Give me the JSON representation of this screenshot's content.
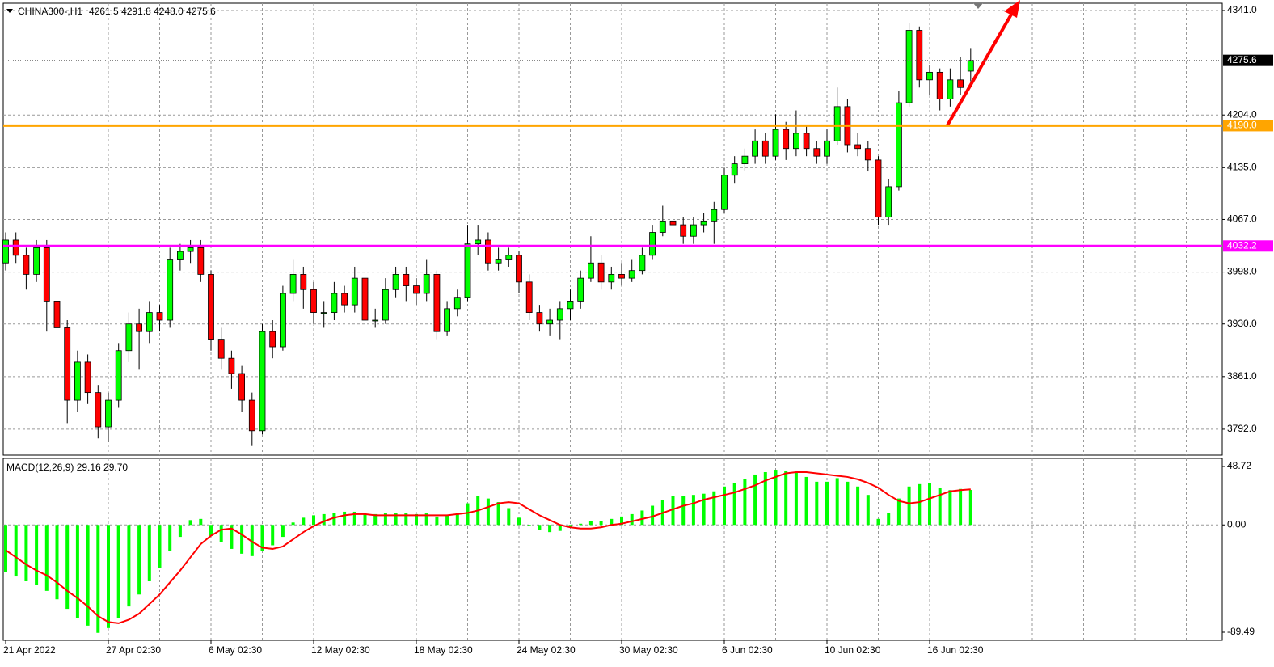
{
  "chart_data": {
    "type": "candlestick",
    "title": "CHINA300-,H1",
    "ohlc_label": "4261.5 4291.8 4248.0 4275.6",
    "categories": [
      "21 Apr 2022",
      null,
      null,
      null,
      null,
      null,
      null,
      null,
      null,
      null,
      "27 Apr 02:30",
      null,
      null,
      null,
      null,
      null,
      null,
      null,
      null,
      null,
      "6 May 02:30",
      null,
      null,
      null,
      null,
      null,
      null,
      null,
      null,
      null,
      "12 May 02:30",
      null,
      null,
      null,
      null,
      null,
      null,
      null,
      null,
      null,
      "18 May 02:30",
      null,
      null,
      null,
      null,
      null,
      null,
      null,
      null,
      null,
      "24 May 02:30",
      null,
      null,
      null,
      null,
      null,
      null,
      null,
      null,
      null,
      "30 May 02:30",
      null,
      null,
      null,
      null,
      null,
      null,
      null,
      null,
      null,
      "6 Jun 02:30",
      null,
      null,
      null,
      null,
      null,
      null,
      null,
      null,
      null,
      "10 Jun 02:30",
      null,
      null,
      null,
      null,
      null,
      null,
      null,
      null,
      null,
      "16 Jun 02:30",
      null,
      null,
      null,
      null
    ],
    "open": [
      4010,
      4040,
      4020,
      3995,
      4030,
      3960,
      3925,
      3830,
      3880,
      3840,
      3795,
      3830,
      3895,
      3930,
      3920,
      3945,
      3935,
      4015,
      4025,
      4030,
      3995,
      3910,
      3885,
      3865,
      3830,
      3790,
      3920,
      3900,
      3970,
      3995,
      3975,
      3945,
      3945,
      3970,
      3955,
      3990,
      3935,
      3935,
      3975,
      3995,
      3980,
      3970,
      3995,
      3920,
      3950,
      3965,
      4035,
      4040,
      4010,
      4015,
      4020,
      3985,
      3945,
      3930,
      3935,
      3950,
      3960,
      3990,
      4010,
      3985,
      3995,
      3990,
      4000,
      4020,
      4050,
      4065,
      4060,
      4045,
      4060,
      4065,
      4080,
      4125,
      4140,
      4150,
      4170,
      4150,
      4185,
      4160,
      4180,
      4160,
      4150,
      4170,
      4215,
      4165,
      4160,
      4145,
      4070,
      4110,
      4220,
      4315,
      4250,
      4260,
      4225,
      4250,
      4261.5
    ],
    "high": [
      4050,
      4050,
      4030,
      4040,
      4040,
      3970,
      3935,
      3895,
      3890,
      3850,
      3840,
      3905,
      3945,
      3950,
      3960,
      3955,
      4030,
      4035,
      4040,
      4040,
      4000,
      3925,
      3895,
      3875,
      3840,
      3930,
      3935,
      3980,
      4015,
      4005,
      3985,
      3960,
      3985,
      3980,
      4005,
      4000,
      3950,
      3990,
      4005,
      4005,
      3990,
      4015,
      4000,
      3960,
      3975,
      4060,
      4060,
      4050,
      4030,
      4030,
      4025,
      3995,
      3955,
      3950,
      3960,
      3975,
      4000,
      4045,
      4020,
      4005,
      4010,
      4015,
      4030,
      4060,
      4085,
      4075,
      4070,
      4070,
      4075,
      4090,
      4135,
      4150,
      4160,
      4185,
      4180,
      4205,
      4195,
      4210,
      4190,
      4170,
      4185,
      4240,
      4225,
      4180,
      4170,
      4150,
      4120,
      4235,
      4325,
      4320,
      4270,
      4265,
      4265,
      4280,
      4291.8
    ],
    "low": [
      4000,
      4010,
      3975,
      3985,
      3920,
      3915,
      3800,
      3815,
      3825,
      3780,
      3775,
      3820,
      3880,
      3870,
      3905,
      3920,
      3925,
      4000,
      4010,
      3985,
      3895,
      3870,
      3845,
      3815,
      3770,
      3785,
      3885,
      3895,
      3960,
      3950,
      3930,
      3925,
      3935,
      3945,
      3945,
      3925,
      3925,
      3930,
      3965,
      3960,
      3955,
      3960,
      3910,
      3915,
      3940,
      3960,
      4020,
      4000,
      4000,
      4005,
      3970,
      3935,
      3920,
      3915,
      3910,
      3935,
      3950,
      3985,
      3975,
      3975,
      3980,
      3985,
      3995,
      4015,
      4045,
      4050,
      4035,
      4035,
      4050,
      4035,
      4075,
      4115,
      4130,
      4140,
      4140,
      4145,
      4145,
      4150,
      4150,
      4140,
      4140,
      4165,
      4155,
      4150,
      4130,
      4060,
      4060,
      4105,
      4215,
      4240,
      4230,
      4210,
      4215,
      4230,
      4248
    ],
    "close": [
      4040,
      4020,
      3995,
      4030,
      3960,
      3925,
      3830,
      3880,
      3840,
      3795,
      3830,
      3895,
      3930,
      3920,
      3945,
      3935,
      4015,
      4025,
      4030,
      3995,
      3910,
      3885,
      3865,
      3830,
      3790,
      3920,
      3900,
      3970,
      3995,
      3975,
      3945,
      3945,
      3970,
      3955,
      3990,
      3935,
      3935,
      3975,
      3995,
      3980,
      3970,
      3995,
      3920,
      3950,
      3965,
      4035,
      4040,
      4010,
      4015,
      4020,
      3985,
      3945,
      3930,
      3935,
      3950,
      3960,
      3990,
      4010,
      3985,
      3995,
      3990,
      4000,
      4020,
      4050,
      4065,
      4060,
      4045,
      4060,
      4065,
      4080,
      4125,
      4140,
      4150,
      4170,
      4150,
      4185,
      4160,
      4180,
      4160,
      4150,
      4170,
      4215,
      4165,
      4160,
      4145,
      4070,
      4110,
      4220,
      4315,
      4250,
      4260,
      4225,
      4250,
      4240,
      4275.6
    ],
    "up_color": "#00ff00",
    "down_color": "#ff0000",
    "ylim": [
      3758,
      4350.5
    ],
    "yticks": [
      {
        "value": 4341,
        "label": "4341.0"
      },
      {
        "value": 4204,
        "label": "4204.0"
      },
      {
        "value": 4135,
        "label": "4135.0"
      },
      {
        "value": 4067,
        "label": "4067.0"
      },
      {
        "value": 3998,
        "label": "3998.0"
      },
      {
        "value": 3930,
        "label": "3930.0"
      },
      {
        "value": 3861,
        "label": "3861.0"
      },
      {
        "value": 3792,
        "label": "3792.0"
      }
    ],
    "grid": true,
    "last_price": {
      "value": 4275.6,
      "label": "4275.6"
    },
    "levels": [
      {
        "value": 4190,
        "label": "4190.0",
        "color": "#ffa500"
      },
      {
        "value": 4032.2,
        "label": "4032.2",
        "color": "#ff00ff"
      }
    ],
    "indicator": {
      "type": "macd",
      "title": "MACD(12,26,9) 29.16 29.70",
      "ylim": [
        -96.23,
        55.46
      ],
      "yticks": [
        {
          "value": 48.72,
          "label": "48.72"
        },
        {
          "value": 0,
          "label": "0.00"
        },
        {
          "value": -89.49,
          "label": "-89.49"
        }
      ],
      "histogram": {
        "color": "#00ff00",
        "values": [
          -39,
          -43,
          -47,
          -50,
          -55,
          -62,
          -70,
          -78,
          -84,
          -90,
          -86,
          -78,
          -68,
          -58,
          -47,
          -36,
          -22,
          -10,
          4,
          5,
          -9,
          -14,
          -20,
          -24,
          -26,
          -22,
          -17,
          -10,
          2,
          6,
          8,
          9,
          10,
          11,
          11,
          9,
          9,
          10,
          10,
          10,
          9,
          10,
          7,
          8,
          10,
          18,
          24,
          22,
          19,
          14,
          6,
          -1,
          -4,
          -6,
          -5,
          -2,
          1,
          3,
          3,
          5,
          7,
          9,
          12,
          16,
          21,
          24,
          24,
          25,
          26,
          28,
          32,
          35,
          38,
          42,
          44,
          46,
          45,
          44,
          40,
          36,
          36,
          39,
          36,
          32,
          25,
          5,
          10,
          22,
          32,
          34,
          35,
          31,
          29,
          30,
          29.16
        ]
      },
      "signal": {
        "color": "#ff0000",
        "values": [
          -21,
          -27,
          -33,
          -38,
          -42,
          -48,
          -55,
          -61,
          -68,
          -76,
          -81,
          -82,
          -79,
          -74,
          -66,
          -58,
          -48,
          -38,
          -27,
          -16,
          -9,
          -4,
          -3,
          -8,
          -14,
          -19,
          -20,
          -18,
          -12,
          -6,
          -1,
          3,
          6,
          8,
          9,
          9,
          8,
          8,
          8,
          8,
          8,
          8,
          8,
          8,
          9,
          10,
          12,
          15,
          18,
          19,
          18,
          13,
          8,
          4,
          0,
          -2,
          -3,
          -3,
          -2,
          0,
          1,
          3,
          5,
          7,
          10,
          13,
          16,
          18,
          21,
          23,
          25,
          27,
          30,
          33,
          37,
          40,
          43,
          44,
          44,
          43,
          42,
          41,
          40,
          38,
          35,
          31,
          25,
          20,
          18,
          19,
          22,
          25,
          28,
          29,
          29.7
        ]
      }
    }
  }
}
